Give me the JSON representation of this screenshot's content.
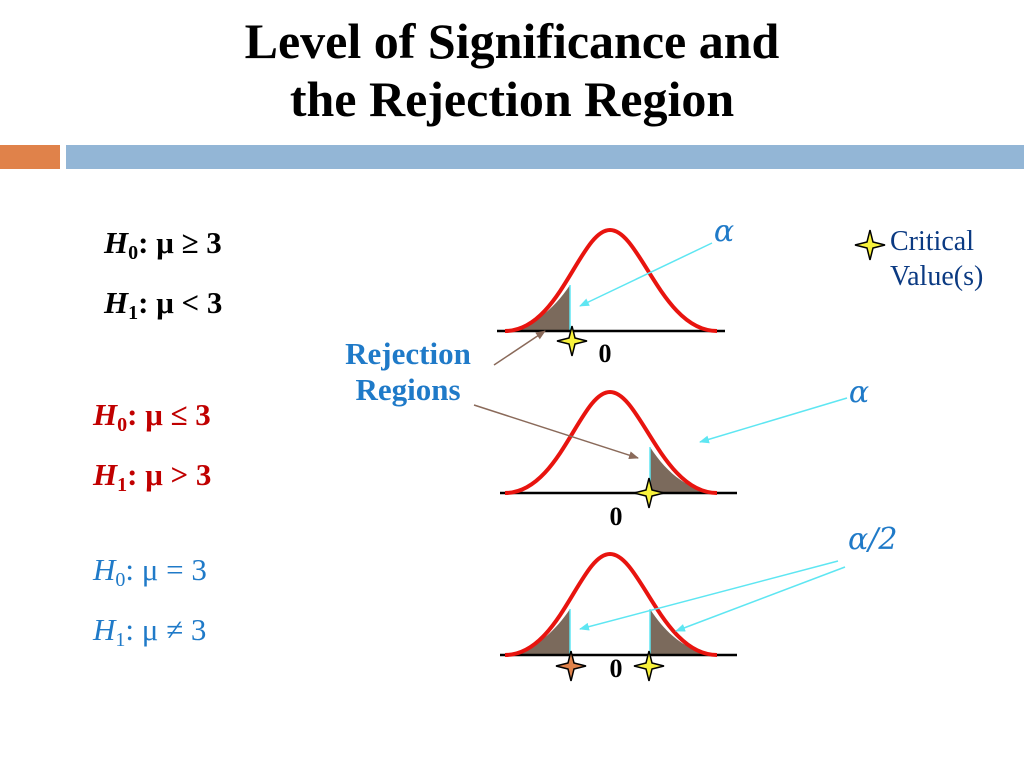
{
  "title": {
    "line1": "Level of Significance and",
    "line2": "the Rejection Region"
  },
  "hypotheses": {
    "left_tail": {
      "h0": {
        "name": "H",
        "sub": "0",
        "rel": ": μ ≥ 3"
      },
      "h1": {
        "name": "H",
        "sub": "1",
        "rel": ": μ < 3"
      }
    },
    "right_tail": {
      "h0": {
        "name": "H",
        "sub": "0",
        "rel": ": μ ≤ 3"
      },
      "h1": {
        "name": "H",
        "sub": "1",
        "rel": ": μ > 3"
      }
    },
    "two_tail": {
      "h0": {
        "name": "H",
        "sub": "0",
        "rel": ": μ = 3"
      },
      "h1": {
        "name": "H",
        "sub": "1",
        "rel": ": μ ≠ 3"
      }
    }
  },
  "labels": {
    "rejection_line1": "Rejection",
    "rejection_line2": "Regions",
    "alpha_left": "α",
    "alpha_right": "α",
    "alpha_half": "α/2",
    "zero_1": "0",
    "zero_2": "0",
    "zero_3": "0"
  },
  "legend": {
    "line1": "Critical",
    "line2": "Value(s)"
  },
  "colors": {
    "curve": "#e8140f",
    "shade": "#7b6a5c",
    "arrow_light": "#5ee6f2",
    "arrow_dark": "#8a6a5a",
    "star_yellow": "#f8f23c",
    "star_orange": "#e0824a",
    "blue_text": "#1f7ac8",
    "red_text": "#c00000"
  },
  "icons": {
    "critical_value": "four-point-star-icon"
  }
}
